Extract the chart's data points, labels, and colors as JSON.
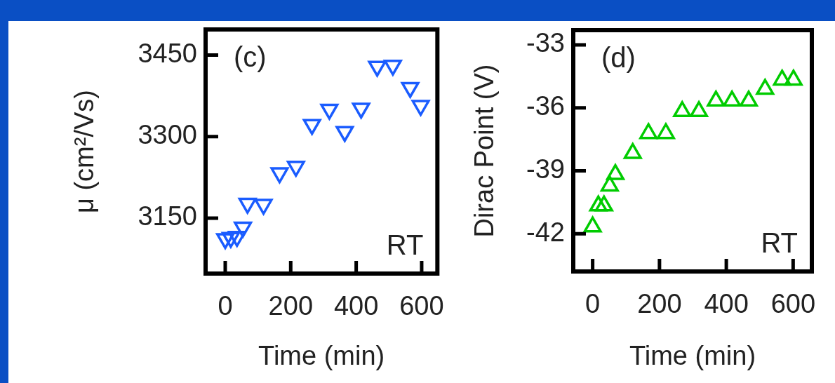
{
  "chart_data": [
    {
      "type": "scatter",
      "xlabel": "Time (min)",
      "ylabel": "μ (cm²/Vs)",
      "marker": "triangle-down",
      "grid": false,
      "legend": false,
      "xlim": [
        -60,
        648
      ],
      "ylim": [
        3048,
        3497
      ],
      "xticks": [
        0,
        200,
        400,
        600
      ],
      "yticks": [
        3150,
        3300,
        3450
      ],
      "series": [
        {
          "color": "#1a5cff",
          "x": [
            0,
            17,
            36,
            54,
            68,
            117,
            166,
            216,
            265,
            318,
            365,
            415,
            464,
            512,
            565,
            597
          ],
          "values": [
            3112,
            3114,
            3116,
            3133,
            3177,
            3175,
            3233,
            3245,
            3322,
            3350,
            3309,
            3352,
            3429,
            3431,
            3390,
            3357
          ]
        }
      ],
      "annotations": [
        "(c)",
        "RT"
      ]
    },
    {
      "type": "scatter",
      "xlabel": "Time (min)",
      "ylabel": "Dirac Point (V)",
      "marker": "triangle",
      "grid": false,
      "legend": false,
      "xlim": [
        -58,
        656
      ],
      "ylim": [
        -43.8,
        -32.3
      ],
      "xticks": [
        0,
        200,
        400,
        600
      ],
      "yticks": [
        -42,
        -39,
        -36,
        -33
      ],
      "series": [
        {
          "color": "#00cc00",
          "x": [
            0,
            17,
            34,
            51,
            68,
            120,
            167,
            219,
            268,
            318,
            369,
            417,
            467,
            516,
            567,
            601
          ],
          "values": [
            -41.67,
            -40.67,
            -40.67,
            -39.72,
            -39.17,
            -38.17,
            -37.22,
            -37.22,
            -36.17,
            -36.17,
            -35.67,
            -35.67,
            -35.67,
            -35.11,
            -34.67,
            -34.67
          ]
        }
      ],
      "annotations": [
        "(d)",
        "RT"
      ]
    }
  ]
}
